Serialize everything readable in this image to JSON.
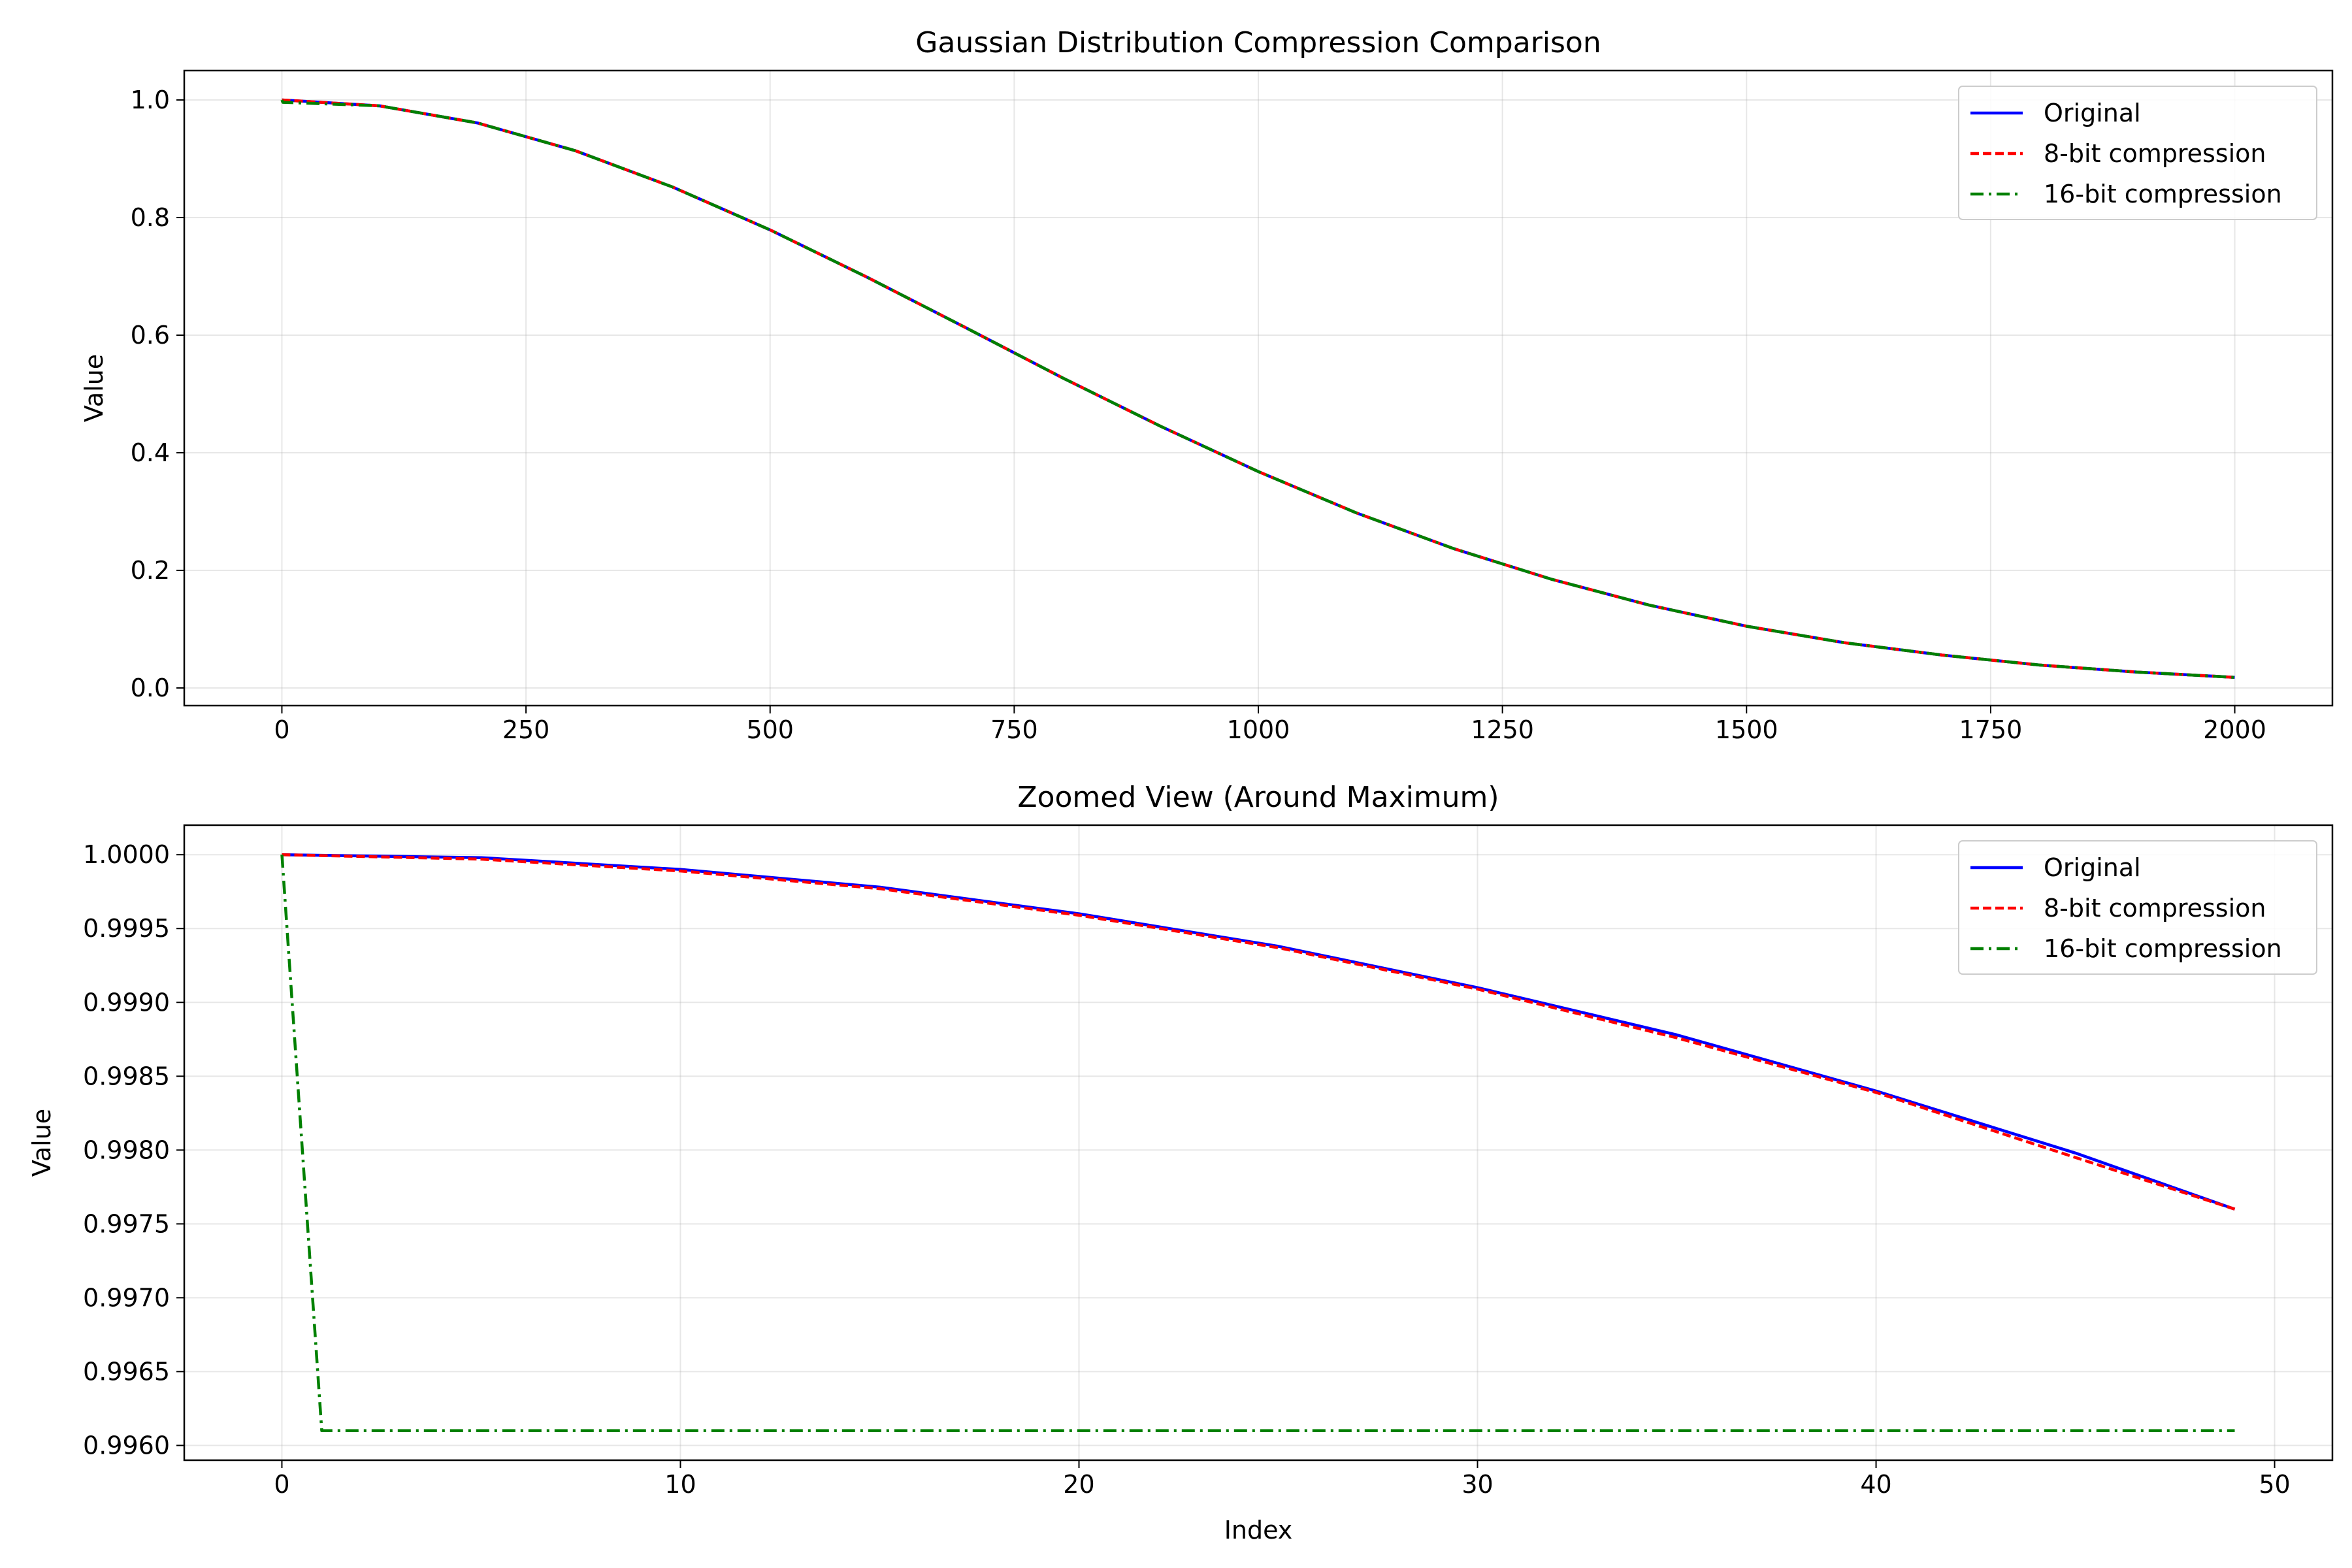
{
  "chart_data": [
    {
      "type": "line",
      "title": "Gaussian Distribution Compression Comparison",
      "xlabel": "",
      "ylabel": "Value",
      "xlim": [
        -100,
        2100
      ],
      "ylim": [
        -0.03,
        1.05
      ],
      "xticks": [
        0,
        250,
        500,
        750,
        1000,
        1250,
        1500,
        1750,
        2000
      ],
      "xtick_labels": [
        "0",
        "250",
        "500",
        "750",
        "1000",
        "1250",
        "1500",
        "1750",
        "2000"
      ],
      "yticks": [
        0.0,
        0.2,
        0.4,
        0.6,
        0.8,
        1.0
      ],
      "ytick_labels": [
        "0.0",
        "0.2",
        "0.4",
        "0.6",
        "0.8",
        "1.0"
      ],
      "grid": true,
      "legend": "upper right",
      "series": [
        {
          "name": "Original",
          "color": "#0000ff",
          "linestyle": "solid",
          "x": [
            0,
            100,
            200,
            300,
            400,
            500,
            600,
            700,
            800,
            900,
            1000,
            1100,
            1200,
            1300,
            1400,
            1500,
            1600,
            1700,
            1800,
            1900,
            2000
          ],
          "y": [
            1.0,
            0.99,
            0.961,
            0.914,
            0.852,
            0.779,
            0.698,
            0.613,
            0.527,
            0.445,
            0.368,
            0.298,
            0.237,
            0.185,
            0.141,
            0.105,
            0.077,
            0.056,
            0.039,
            0.027,
            0.018
          ]
        },
        {
          "name": "8-bit compression",
          "color": "#ff0000",
          "linestyle": "dashed",
          "x": [
            0,
            100,
            200,
            300,
            400,
            500,
            600,
            700,
            800,
            900,
            1000,
            1100,
            1200,
            1300,
            1400,
            1500,
            1600,
            1700,
            1800,
            1900,
            2000
          ],
          "y": [
            1.0,
            0.99,
            0.961,
            0.914,
            0.852,
            0.779,
            0.698,
            0.613,
            0.527,
            0.445,
            0.368,
            0.298,
            0.237,
            0.185,
            0.141,
            0.105,
            0.077,
            0.056,
            0.039,
            0.027,
            0.018
          ]
        },
        {
          "name": "16-bit compression",
          "color": "#008000",
          "linestyle": "dashdot",
          "x": [
            0,
            1,
            100,
            200,
            300,
            400,
            500,
            600,
            700,
            800,
            900,
            1000,
            1100,
            1200,
            1300,
            1400,
            1500,
            1600,
            1700,
            1800,
            1900,
            2000
          ],
          "y": [
            1.0,
            0.996,
            0.99,
            0.961,
            0.914,
            0.852,
            0.779,
            0.698,
            0.613,
            0.527,
            0.445,
            0.368,
            0.298,
            0.237,
            0.185,
            0.141,
            0.105,
            0.077,
            0.056,
            0.039,
            0.027,
            0.018
          ]
        }
      ]
    },
    {
      "type": "line",
      "title": "Zoomed View (Around Maximum)",
      "xlabel": "Index",
      "ylabel": "Value",
      "xlim": [
        -2.45,
        51.45
      ],
      "ylim": [
        0.9959,
        1.0002
      ],
      "xticks": [
        0,
        10,
        20,
        30,
        40,
        50
      ],
      "xtick_labels": [
        "0",
        "10",
        "20",
        "30",
        "40",
        "50"
      ],
      "yticks": [
        0.996,
        0.9965,
        0.997,
        0.9975,
        0.998,
        0.9985,
        0.999,
        0.9995,
        1.0
      ],
      "ytick_labels": [
        "0.9960",
        "0.9965",
        "0.9970",
        "0.9975",
        "0.9980",
        "0.9985",
        "0.9990",
        "0.9995",
        "1.0000"
      ],
      "grid": true,
      "legend": "upper right",
      "series": [
        {
          "name": "Original",
          "color": "#0000ff",
          "linestyle": "solid",
          "x": [
            0,
            5,
            10,
            15,
            20,
            25,
            30,
            35,
            40,
            45,
            49
          ],
          "y": [
            1.0,
            0.99998,
            0.9999,
            0.99978,
            0.9996,
            0.99938,
            0.9991,
            0.99878,
            0.9984,
            0.99798,
            0.9976
          ]
        },
        {
          "name": "8-bit compression",
          "color": "#ff0000",
          "linestyle": "dashed",
          "x": [
            0,
            5,
            10,
            15,
            20,
            25,
            30,
            35,
            40,
            45,
            49
          ],
          "y": [
            1.0,
            0.99997,
            0.99989,
            0.99977,
            0.99959,
            0.99937,
            0.99909,
            0.99876,
            0.99839,
            0.99795,
            0.9976
          ]
        },
        {
          "name": "16-bit compression",
          "color": "#008000",
          "linestyle": "dashdot",
          "x": [
            0,
            1,
            10,
            20,
            30,
            40,
            49
          ],
          "y": [
            1.0,
            0.9961,
            0.9961,
            0.9961,
            0.9961,
            0.9961,
            0.9961
          ]
        }
      ]
    }
  ]
}
